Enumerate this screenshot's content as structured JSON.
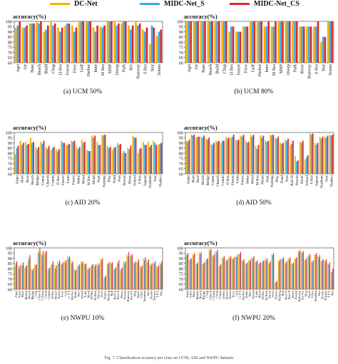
{
  "legend": [
    {
      "name": "DC-Net",
      "color": "#f5b400"
    },
    {
      "name": "MIDC-Net_S",
      "color": "#3ba9e8"
    },
    {
      "name": "MIDC-Net_CS",
      "color": "#e02828"
    }
  ],
  "chart_data": [
    {
      "type": "bar",
      "title": "(a)  UCM 50%",
      "ylabel": "accuracy(%)",
      "ylim": [
        60,
        100
      ],
      "yticks": [
        60,
        65,
        70,
        75,
        80,
        85,
        90,
        95,
        100
      ],
      "categories": [
        "Agri",
        "Air",
        "Base",
        "Beach",
        "Build",
        "Chap",
        "D Res",
        "Forest",
        "Frew",
        "Golf",
        "Harbor",
        "Inter",
        "M Res",
        "MHP",
        "Overp",
        "Park",
        "Riv",
        "Runway",
        "S Res",
        "Stor",
        "Tennis"
      ],
      "series": [
        {
          "name": "DC-Net",
          "values": [
            94,
            94,
            98,
            100,
            90,
            100,
            94,
            96,
            96,
            100,
            100,
            94,
            95,
            100,
            100,
            98,
            96,
            100,
            92,
            78,
            86
          ]
        },
        {
          "name": "MIDC-Net_S",
          "values": [
            96,
            94,
            98,
            98,
            92,
            96,
            90,
            98,
            90,
            100,
            100,
            90,
            94,
            100,
            96,
            100,
            92,
            96,
            90,
            96,
            90
          ]
        },
        {
          "name": "MIDC-Net_CS",
          "values": [
            100,
            96,
            98,
            100,
            96,
            98,
            94,
            98,
            94,
            100,
            100,
            96,
            96,
            100,
            98,
            100,
            96,
            98,
            94,
            94,
            92
          ]
        }
      ]
    },
    {
      "type": "bar",
      "title": "(b)  UCM 80%",
      "ylabel": "accuracy(%)",
      "ylim": [
        60,
        100
      ],
      "yticks": [
        60,
        65,
        70,
        75,
        80,
        85,
        90,
        95,
        100
      ],
      "categories": [
        "Agri",
        "Air",
        "Base",
        "Beach",
        "Build",
        "Chap",
        "D Res",
        "Forest",
        "Frew",
        "Golf",
        "Harbor",
        "Inter",
        "M Res",
        "MHP",
        "Overp",
        "Park",
        "River",
        "Runway",
        "S Res",
        "Stor",
        "Tennis"
      ],
      "series": [
        {
          "name": "DC-Net",
          "values": [
            100,
            100,
            100,
            100,
            100,
            100,
            90,
            90,
            95,
            100,
            100,
            95,
            95,
            100,
            100,
            100,
            95,
            95,
            95,
            80,
            100
          ]
        },
        {
          "name": "MIDC-Net_S",
          "values": [
            100,
            100,
            100,
            100,
            100,
            100,
            95,
            90,
            95,
            100,
            100,
            95,
            95,
            100,
            100,
            100,
            95,
            95,
            95,
            85,
            100
          ]
        },
        {
          "name": "MIDC-Net_CS",
          "values": [
            100,
            100,
            100,
            100,
            100,
            100,
            95,
            90,
            95,
            100,
            100,
            100,
            100,
            100,
            100,
            100,
            95,
            95,
            100,
            85,
            100
          ]
        }
      ]
    },
    {
      "type": "bar",
      "title": "(c)  AID 20%",
      "ylabel": "accuracy(%)",
      "ylim": [
        60,
        100
      ],
      "yticks": [
        60,
        65,
        70,
        75,
        80,
        85,
        90,
        95,
        100
      ],
      "categories": [
        "Airpo",
        "Bare",
        "Base",
        "Beach",
        "Bridge",
        "Center",
        "Church",
        "Comm",
        "D Res",
        "Desert",
        "Farm",
        "Forest",
        "Indus",
        "Mead",
        "M Res",
        "Moun",
        "Park",
        "Parking",
        "Play",
        "Pond",
        "Port",
        "Resort",
        "River",
        "School",
        "S Res",
        "Square",
        "Stadium",
        "Stor",
        "Viaduct"
      ],
      "series": [
        {
          "name": "DC-Net",
          "values": [
            79,
            92,
            91,
            95,
            86,
            91,
            86,
            83,
            84,
            92,
            88,
            92,
            86,
            93,
            83,
            97,
            91,
            98,
            87,
            83,
            90,
            80,
            85,
            97,
            80,
            91,
            91,
            92,
            88
          ]
        },
        {
          "name": "MIDC-Net_S",
          "values": [
            85,
            88,
            88,
            90,
            84,
            89,
            84,
            85,
            82,
            90,
            88,
            91,
            84,
            90,
            82,
            95,
            88,
            97,
            85,
            85,
            88,
            82,
            84,
            95,
            84,
            88,
            86,
            90,
            89
          ]
        },
        {
          "name": "MIDC-Net_CS",
          "values": [
            87,
            90,
            89,
            91,
            86,
            92,
            87,
            86,
            84,
            90,
            89,
            92,
            86,
            91,
            82,
            97,
            88,
            98,
            86,
            86,
            89,
            80,
            87,
            95,
            85,
            88,
            88,
            88,
            90
          ]
        }
      ]
    },
    {
      "type": "bar",
      "title": "(d)  AID 50%",
      "ylabel": "accuracy(%)",
      "ylim": [
        60,
        100
      ],
      "yticks": [
        60,
        65,
        70,
        75,
        80,
        85,
        90,
        95,
        100
      ],
      "categories": [
        "Airpo",
        "Bare",
        "Base",
        "Beach",
        "Bridge",
        "Center",
        "Church",
        "Comm",
        "D Res",
        "Desert",
        "Farm",
        "Forest",
        "Indus",
        "Mead",
        "M Res",
        "Moun",
        "Park",
        "Parking",
        "Play",
        "Pond",
        "Port",
        "Rail St",
        "Resort",
        "River",
        "School",
        "S Res",
        "Square",
        "Stadium",
        "Stor",
        "Viaduct"
      ],
      "series": [
        {
          "name": "DC-Net",
          "values": [
            92,
            98,
            95,
            96,
            94,
            89,
            92,
            90,
            96,
            95,
            93,
            97,
            92,
            98,
            87,
            97,
            92,
            98,
            95,
            90,
            93,
            88,
            77,
            91,
            74,
            99,
            90,
            96,
            96,
            98
          ]
        },
        {
          "name": "MIDC-Net_S",
          "values": [
            91,
            97,
            96,
            95,
            93,
            88,
            91,
            92,
            94,
            96,
            92,
            96,
            90,
            96,
            84,
            95,
            91,
            97,
            94,
            89,
            92,
            89,
            72,
            90,
            76,
            98,
            88,
            94,
            95,
            97
          ]
        },
        {
          "name": "MIDC-Net_CS",
          "values": [
            93,
            98,
            96,
            97,
            95,
            90,
            92,
            92,
            95,
            98,
            93,
            98,
            91,
            98,
            88,
            97,
            92,
            98,
            96,
            90,
            94,
            92,
            73,
            92,
            78,
            99,
            90,
            96,
            97,
            98
          ]
        }
      ]
    },
    {
      "type": "bar",
      "title": "(e)  NWPU 10%",
      "ylabel": "accuracy(%)",
      "ylim": [
        60,
        100
      ],
      "yticks": [
        60,
        65,
        70,
        75,
        80,
        85,
        90,
        95,
        100
      ],
      "categories": [
        "Airpl",
        "Airpo",
        "Base",
        "Basket",
        "Beach",
        "Bridge",
        "Chap",
        "Church",
        "C Farm",
        "Cloud",
        "Comm",
        "D Res",
        "Desert",
        "Forest",
        "Frew",
        "Golf",
        "G T F",
        "Harbor",
        "Indus",
        "Inter",
        "Island",
        "Lake",
        "Mead",
        "M Res",
        "M Park",
        "Moun",
        "Over",
        "Palace",
        "Parking",
        "Rail",
        "Rail St",
        "Rect F",
        "River",
        "Round",
        "Runway",
        "Sea Ice",
        "Ship",
        "Snow",
        "S Res",
        "Stadium",
        "Stor",
        "Tennis",
        "Terrace",
        "T P S",
        "Wet"
      ],
      "series": [
        {
          "name": "DC-Net",
          "values": [
            82,
            83,
            85,
            80,
            87,
            80,
            84,
            97,
            95,
            94,
            78,
            84,
            83,
            87,
            85,
            88,
            92,
            88,
            80,
            83,
            87,
            85,
            80,
            81,
            84,
            84,
            90,
            70,
            85,
            87,
            79,
            86,
            78,
            87,
            94,
            93,
            86,
            87,
            82,
            90,
            88,
            84,
            86,
            82,
            86
          ]
        },
        {
          "name": "MIDC-Net_S",
          "values": [
            85,
            80,
            83,
            82,
            90,
            78,
            83,
            95,
            93,
            96,
            80,
            84,
            80,
            85,
            84,
            86,
            90,
            85,
            78,
            82,
            85,
            84,
            79,
            83,
            82,
            83,
            88,
            72,
            84,
            85,
            80,
            85,
            80,
            85,
            92,
            92,
            85,
            86,
            81,
            88,
            86,
            83,
            85,
            81,
            84
          ]
        },
        {
          "name": "MIDC-Net_CS",
          "values": [
            87,
            83,
            86,
            83,
            93,
            80,
            84,
            100,
            97,
            97,
            81,
            87,
            83,
            88,
            86,
            88,
            92,
            87,
            79,
            84,
            87,
            85,
            81,
            84,
            84,
            85,
            90,
            73,
            86,
            86,
            81,
            88,
            81,
            87,
            96,
            94,
            87,
            89,
            83,
            91,
            89,
            85,
            87,
            83,
            87
          ]
        }
      ]
    },
    {
      "type": "bar",
      "title": "(f)  NWPU 20%",
      "ylabel": "accuracy(%)",
      "ylim": [
        60,
        100
      ],
      "yticks": [
        60,
        65,
        70,
        75,
        80,
        85,
        90,
        95,
        100
      ],
      "categories": [
        "Airpl",
        "Airpo",
        "Base",
        "Basket",
        "Beach",
        "Bridge",
        "Chap",
        "Church",
        "C Farm",
        "Cloud",
        "Comm",
        "D Res",
        "Desert",
        "Forest",
        "Frew",
        "Golf",
        "G T F",
        "Harbor",
        "Indus",
        "Inter",
        "Island",
        "Lake",
        "Mead",
        "M Res",
        "M Park",
        "Moun",
        "Over",
        "Palace",
        "Parking",
        "Rail",
        "Rail St",
        "Rect F",
        "River",
        "Round",
        "Runway",
        "Sea Ice",
        "Ship",
        "Snow",
        "S Res",
        "Stadium",
        "Stor",
        "Tennis",
        "Terrace",
        "T P S",
        "Wet"
      ],
      "series": [
        {
          "name": "DC-Net",
          "values": [
            94,
            88,
            94,
            85,
            96,
            84,
            88,
            99,
            93,
            97,
            82,
            91,
            88,
            92,
            90,
            92,
            95,
            88,
            85,
            88,
            91,
            87,
            84,
            86,
            89,
            86,
            94,
            66,
            88,
            90,
            86,
            90,
            85,
            90,
            97,
            96,
            89,
            93,
            87,
            94,
            92,
            87,
            88,
            85,
            76
          ]
        },
        {
          "name": "MIDC-Net_S",
          "values": [
            93,
            89,
            93,
            84,
            94,
            85,
            89,
            97,
            92,
            96,
            83,
            90,
            87,
            90,
            89,
            91,
            94,
            87,
            84,
            87,
            90,
            86,
            85,
            87,
            88,
            85,
            93,
            67,
            87,
            89,
            85,
            89,
            84,
            89,
            96,
            95,
            88,
            92,
            86,
            93,
            91,
            88,
            87,
            84,
            77
          ]
        },
        {
          "name": "MIDC-Net_CS",
          "values": [
            95,
            90,
            95,
            86,
            96,
            86,
            90,
            99,
            94,
            98,
            84,
            92,
            89,
            92,
            91,
            93,
            96,
            89,
            86,
            89,
            92,
            88,
            86,
            88,
            90,
            87,
            95,
            68,
            89,
            91,
            87,
            91,
            86,
            91,
            98,
            97,
            90,
            94,
            88,
            95,
            93,
            89,
            89,
            86,
            80
          ]
        }
      ]
    }
  ],
  "caption": "Fig. 7.  Classification accuracy per class on UCM, AID and NWPU datasets"
}
